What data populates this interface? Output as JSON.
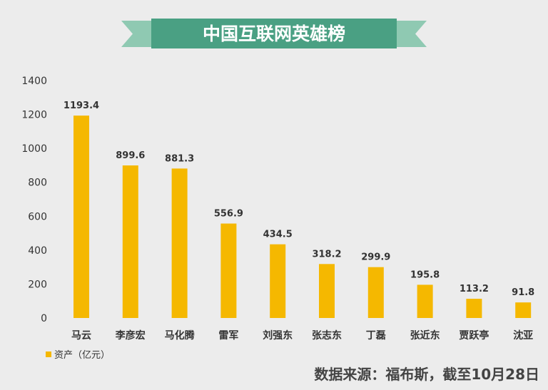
{
  "chart_data": {
    "type": "bar",
    "title": "中国互联网英雄榜",
    "categories": [
      "马云",
      "李彦宏",
      "马化腾",
      "雷军",
      "刘强东",
      "张志东",
      "丁磊",
      "张近东",
      "贾跃亭",
      "沈亚"
    ],
    "series": [
      {
        "name": "资产（亿元）",
        "values": [
          1193.4,
          899.6,
          881.3,
          556.9,
          434.5,
          318.2,
          299.9,
          195.8,
          113.2,
          91.8
        ]
      }
    ],
    "value_labels": [
      "1193.4",
      "899.6",
      "881.3",
      "556.9",
      "434.5",
      "318.2",
      "299.9",
      "195.8",
      "113.2",
      "91.8"
    ],
    "ylim": [
      0,
      1400
    ],
    "yticks": [
      "0",
      "200",
      "400",
      "600",
      "800",
      "1000",
      "1200",
      "1400"
    ],
    "grid": false,
    "legend_position": "bottom-left",
    "source": "数据来源：福布斯，截至10月28日"
  },
  "colors": {
    "bar": "#f5b800",
    "banner": "#4aa083",
    "banner_ribbon": "#8fc9b2",
    "text": "#333333"
  }
}
